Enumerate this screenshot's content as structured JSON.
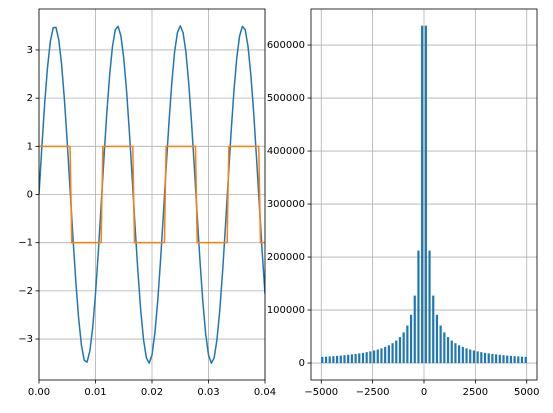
{
  "chart_data": [
    {
      "type": "line",
      "grid": true,
      "xlim": [
        0,
        0.04
      ],
      "ylim": [
        -3.85,
        3.85
      ],
      "xticks": [
        {
          "value": 0,
          "label": "0.00"
        },
        {
          "value": 0.01,
          "label": "0.01"
        },
        {
          "value": 0.02,
          "label": "0.02"
        },
        {
          "value": 0.03,
          "label": "0.03"
        },
        {
          "value": 0.04,
          "label": "0.04"
        }
      ],
      "yticks": [
        {
          "value": -3,
          "label": "−3"
        },
        {
          "value": -2,
          "label": "−2"
        },
        {
          "value": -1,
          "label": "−1"
        },
        0,
        1,
        2,
        3
      ],
      "series": [
        {
          "color": "#1f77b4",
          "x": [
            0,
            0.0005,
            0.001,
            0.0015,
            0.002,
            0.0025,
            0.003,
            0.0035,
            0.004,
            0.0045,
            0.005,
            0.0055,
            0.006,
            0.0065,
            0.007,
            0.0075,
            0.008,
            0.0085,
            0.009,
            0.0095,
            0.01,
            0.0105,
            0.011,
            0.0115,
            0.012,
            0.0125,
            0.013,
            0.0135,
            0.014,
            0.0145,
            0.015,
            0.0155,
            0.016,
            0.0165,
            0.017,
            0.0175,
            0.018,
            0.0185,
            0.019,
            0.0195,
            0.02,
            0.0205,
            0.021,
            0.0215,
            0.022,
            0.0225,
            0.023,
            0.0235,
            0.024,
            0.0245,
            0.025,
            0.0255,
            0.026,
            0.0265,
            0.027,
            0.0275,
            0.028,
            0.0285,
            0.029,
            0.0295,
            0.03,
            0.0305,
            0.031,
            0.0315,
            0.032,
            0.0325,
            0.033,
            0.0335,
            0.034,
            0.0345,
            0.035,
            0.0355,
            0.036,
            0.0365,
            0.037,
            0.0375,
            0.038,
            0.0385,
            0.039,
            0.0395,
            0.04
          ],
          "values": [
            0,
            0.98,
            1.88,
            2.63,
            3.17,
            3.46,
            3.47,
            3.21,
            2.7,
            1.97,
            1.08,
            0.11,
            -0.87,
            -1.78,
            -2.55,
            -3.12,
            -3.44,
            -3.48,
            -3.25,
            -2.77,
            -2.06,
            -1.19,
            -0.22,
            0.76,
            1.69,
            2.47,
            3.07,
            3.42,
            3.49,
            3.29,
            2.83,
            2.15,
            1.29,
            0.33,
            -0.66,
            -1.59,
            -2.4,
            -3.01,
            -3.39,
            -3.5,
            -3.33,
            -2.89,
            -2.23,
            -1.39,
            -0.44,
            0.55,
            1.49,
            2.31,
            2.96,
            3.36,
            3.5,
            3.36,
            2.96,
            2.31,
            1.49,
            0.55,
            -0.44,
            -1.39,
            -2.23,
            -2.89,
            -3.33,
            -3.5,
            -3.39,
            -3.01,
            -2.4,
            -1.59,
            -0.66,
            0.33,
            1.29,
            2.15,
            2.83,
            3.29,
            3.49,
            3.42,
            3.07,
            2.47,
            1.69,
            0.76,
            -0.22,
            -1.19,
            -2.06
          ]
        },
        {
          "color": "#ff7f0e",
          "x": [
            0,
            0.0055,
            0.0058,
            0.011,
            0.0113,
            0.0166,
            0.0169,
            0.0222,
            0.0225,
            0.0277,
            0.028,
            0.0333,
            0.0336,
            0.0389,
            0.0392,
            0.04
          ],
          "values": [
            1,
            1,
            -1,
            -1,
            1,
            1,
            -1,
            -1,
            1,
            1,
            -1,
            -1,
            1,
            1,
            -1,
            -1
          ]
        }
      ]
    },
    {
      "type": "bar",
      "grid": true,
      "color": "#1f77b4",
      "xlim": [
        -5500,
        5500
      ],
      "ylim": [
        -32000,
        668000
      ],
      "xticks": [
        {
          "value": -5000,
          "label": "−5000"
        },
        {
          "value": -2500,
          "label": "−2500"
        },
        0,
        2500,
        5000
      ],
      "yticks": [
        0,
        100000,
        200000,
        300000,
        400000,
        500000,
        600000
      ],
      "x": [
        -4950,
        -4770,
        -4590,
        -4410,
        -4230,
        -4050,
        -3870,
        -3690,
        -3510,
        -3330,
        -3150,
        -2970,
        -2790,
        -2610,
        -2430,
        -2250,
        -2070,
        -1890,
        -1710,
        -1530,
        -1350,
        -1170,
        -990,
        -810,
        -630,
        -450,
        -270,
        -90,
        90,
        270,
        450,
        630,
        810,
        990,
        1170,
        1350,
        1530,
        1710,
        1890,
        2070,
        2250,
        2430,
        2610,
        2790,
        2970,
        3150,
        3330,
        3510,
        3690,
        3870,
        4050,
        4230,
        4410,
        4590,
        4770,
        4950
      ],
      "values": [
        11600,
        12000,
        12500,
        13000,
        13500,
        14100,
        14800,
        15500,
        16300,
        17200,
        18200,
        19300,
        20500,
        22000,
        23600,
        25500,
        27700,
        30300,
        33500,
        37400,
        42400,
        49000,
        57900,
        70700,
        90900,
        127300,
        212200,
        636600,
        636600,
        212200,
        127300,
        90900,
        70700,
        57900,
        49000,
        42400,
        37400,
        33500,
        30300,
        27700,
        25500,
        23600,
        22000,
        20500,
        19300,
        18200,
        17200,
        16300,
        15500,
        14800,
        14100,
        13500,
        13000,
        12500,
        12000,
        11600
      ]
    }
  ]
}
